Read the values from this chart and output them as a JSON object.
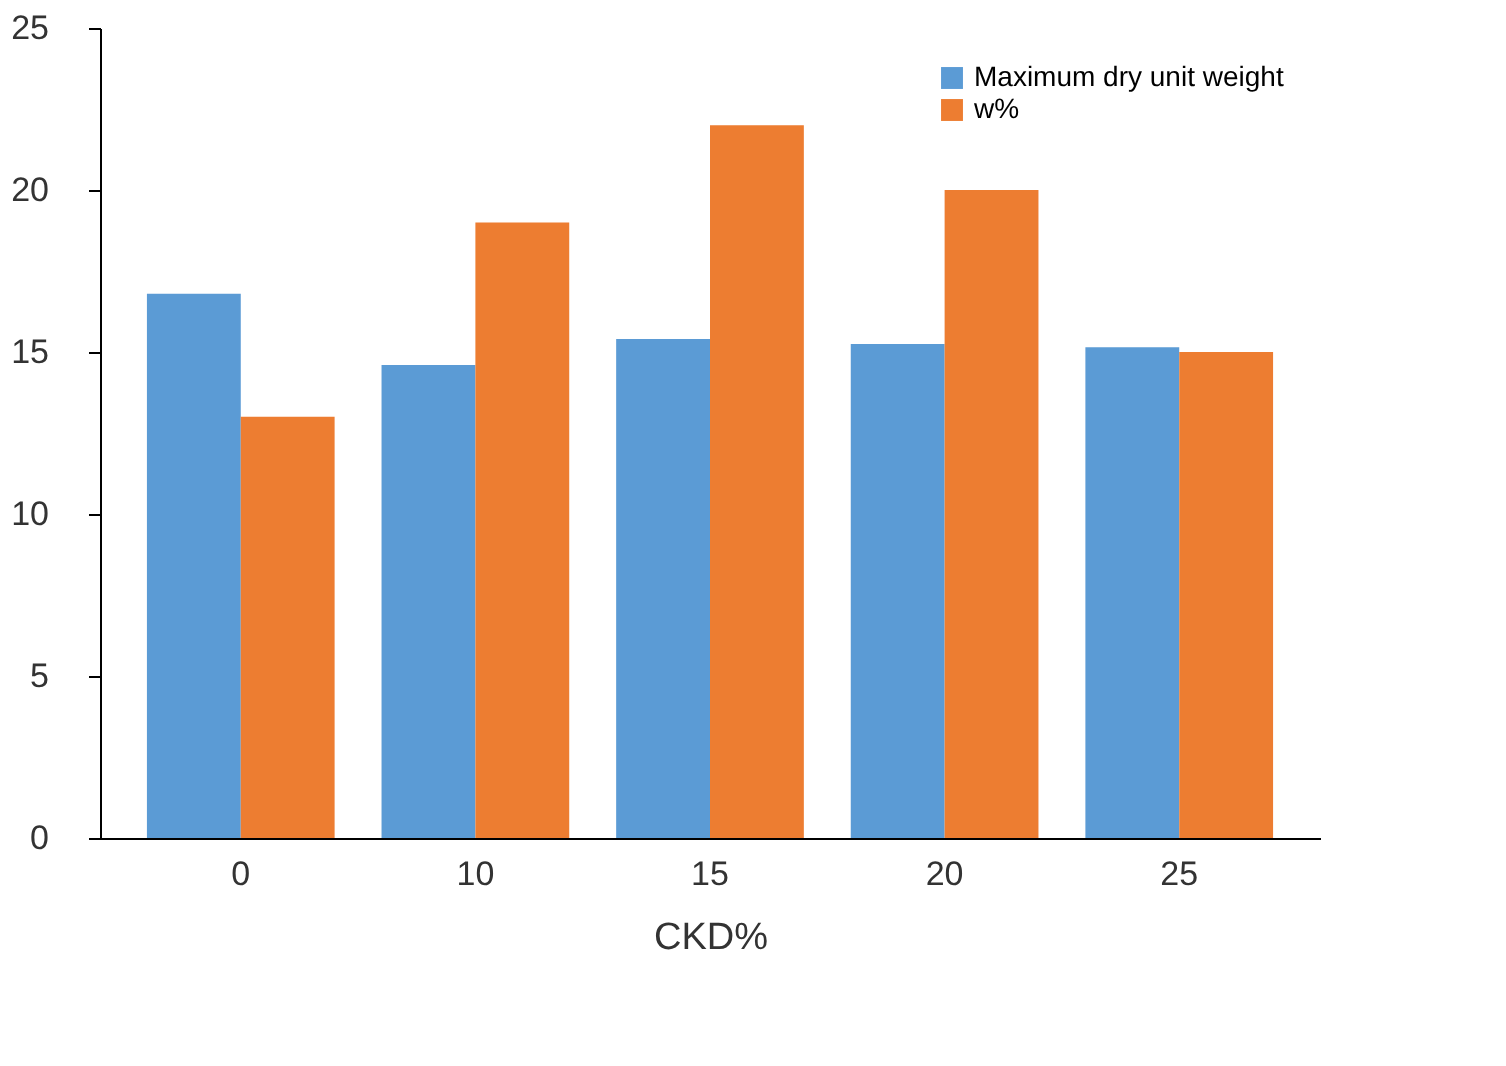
{
  "chart_data": {
    "type": "bar",
    "xlabel": "CKD%",
    "categories": [
      "0",
      "10",
      "15",
      "20",
      "25"
    ],
    "series": [
      {
        "name": "Maximum dry unit weight",
        "color": "#5b9bd5",
        "values": [
          16.8,
          14.6,
          15.4,
          15.25,
          15.15
        ]
      },
      {
        "name": "w%",
        "color": "#ed7d31",
        "values": [
          13.0,
          19.0,
          22.0,
          20.0,
          15.0
        ]
      }
    ],
    "ylim": [
      0,
      25
    ],
    "yticks": [
      0,
      5,
      10,
      15,
      20,
      25
    ],
    "grid": false,
    "legend": "top right"
  }
}
